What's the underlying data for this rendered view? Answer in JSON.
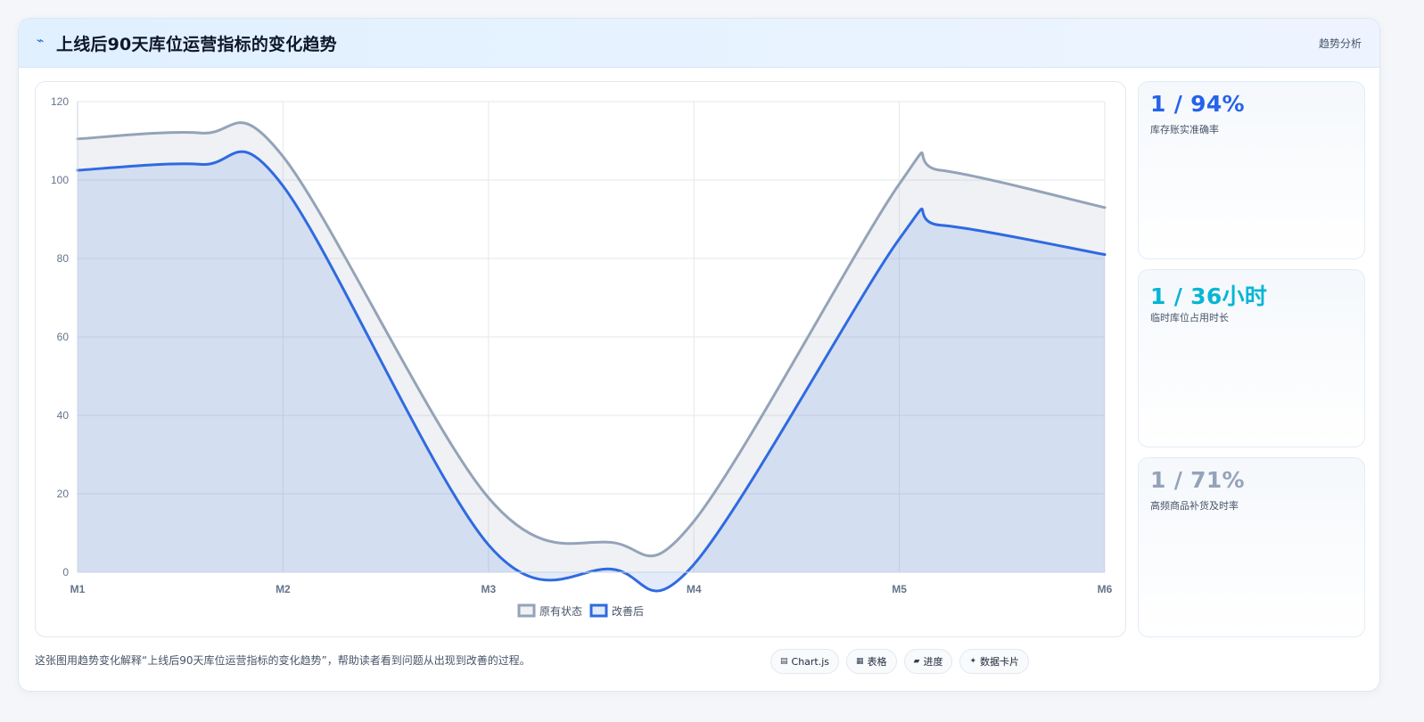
{
  "header": {
    "icon": "lightning-icon",
    "title": "上线后90天库位运营指标的变化趋势",
    "tag": "趋势分析"
  },
  "chart_data": {
    "type": "area",
    "categories": [
      "M1",
      "M2",
      "M3",
      "M4",
      "M5",
      "M6"
    ],
    "x": [
      1,
      1.6,
      2,
      3,
      3.6,
      4,
      5,
      5.2,
      6
    ],
    "series": [
      {
        "name": "原有状态",
        "color": "#94a3b8",
        "values": [
          110.5,
          112,
          106,
          19,
          7.6,
          13,
          99,
          102.5,
          93
        ]
      },
      {
        "name": "改善后",
        "color": "#2f6ae0",
        "values": [
          102.5,
          104,
          98.5,
          7,
          0.8,
          2,
          85,
          88.5,
          81
        ]
      }
    ],
    "yticks": [
      0,
      20,
      40,
      60,
      80,
      100,
      120
    ],
    "ylim": [
      0,
      120
    ],
    "grid": true,
    "legend": "bottom"
  },
  "kpis": [
    {
      "value": "1 / 94%",
      "label": "库存账实准确率",
      "color": "#2563eb"
    },
    {
      "value": "1 / 36小时",
      "label": "临时库位占用时长",
      "color": "#06b6d4"
    },
    {
      "value": "1 / 71%",
      "label": "高频商品补货及时率",
      "color": "#94a3b8"
    }
  ],
  "footer": {
    "description": "这张图用趋势变化解释“上线后90天库位运营指标的变化趋势”，帮助读者看到问题从出现到改善的过程。",
    "chips": [
      {
        "icon": "chart-icon",
        "glyph": "▤",
        "label": "Chart.js"
      },
      {
        "icon": "table-icon",
        "glyph": "▦",
        "label": "表格"
      },
      {
        "icon": "progress-icon",
        "glyph": "▰",
        "label": "进度"
      },
      {
        "icon": "sparkle-icon",
        "glyph": "✦",
        "label": "数据卡片"
      }
    ]
  }
}
